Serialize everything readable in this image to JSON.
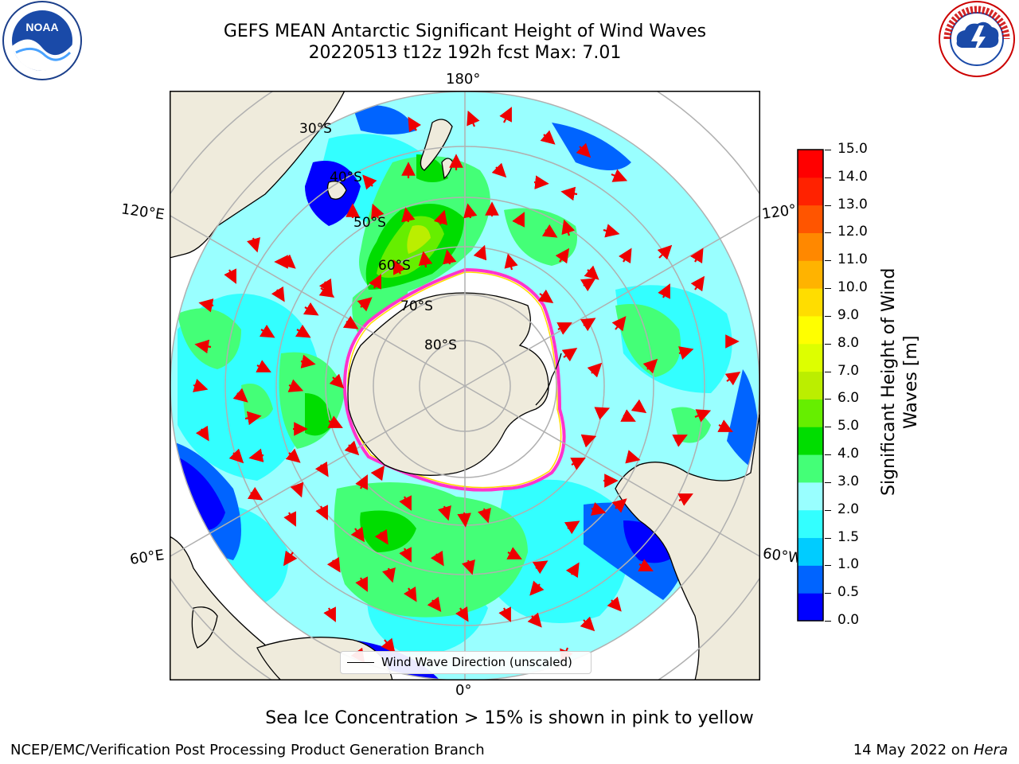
{
  "header": {
    "title_line1": "GEFS MEAN Antarctic Significant Height of Wind Waves",
    "title_line2": "20220513 t12z 192h fcst   Max: 7.01"
  },
  "logos": {
    "noaa": "NOAA",
    "nws_text": "NATIONAL WEATHER SERVICE"
  },
  "map": {
    "type": "south-polar-stereographic",
    "lon_labels": {
      "top": "180°",
      "bottom": "0°",
      "left_upper": "120°E",
      "left_lower": "60°E",
      "right_upper": "120°W",
      "right_lower": "60°W"
    },
    "lat_labels": [
      "30°S",
      "40°S",
      "50°S",
      "60°S",
      "70°S",
      "80°S"
    ],
    "legend": "Wind Wave Direction (unscaled)",
    "colors": {
      "land": "#efebdc",
      "sea_ice": "#ffffff",
      "ice_edge": "#ff33cc",
      "arrows": "#ee0000",
      "grid": "#b0b0b0"
    }
  },
  "colorbar": {
    "label": "Significant Height of Wind Waves [m]",
    "ticks": [
      "15.0",
      "14.0",
      "13.0",
      "12.0",
      "11.0",
      "10.0",
      "9.0",
      "8.0",
      "7.0",
      "6.0",
      "5.0",
      "4.0",
      "3.0",
      "2.0",
      "1.5",
      "1.0",
      "0.5",
      "0.0"
    ],
    "colors_bottom_to_top": [
      "#0000ff",
      "#0064ff",
      "#00ccff",
      "#33ffff",
      "#99ffff",
      "#44ff77",
      "#00dd00",
      "#66ee00",
      "#bbee00",
      "#ddff00",
      "#ffff00",
      "#ffdd00",
      "#ffb300",
      "#ff8800",
      "#ff5500",
      "#ff2200",
      "#ff0000"
    ]
  },
  "note": "Sea Ice Concentration > 15% is shown in pink to yellow",
  "footer": {
    "left": "NCEP/EMC/Verification Post Processing Product Generation Branch",
    "right_date": "14 May 2022 on ",
    "right_host": "Hera"
  }
}
